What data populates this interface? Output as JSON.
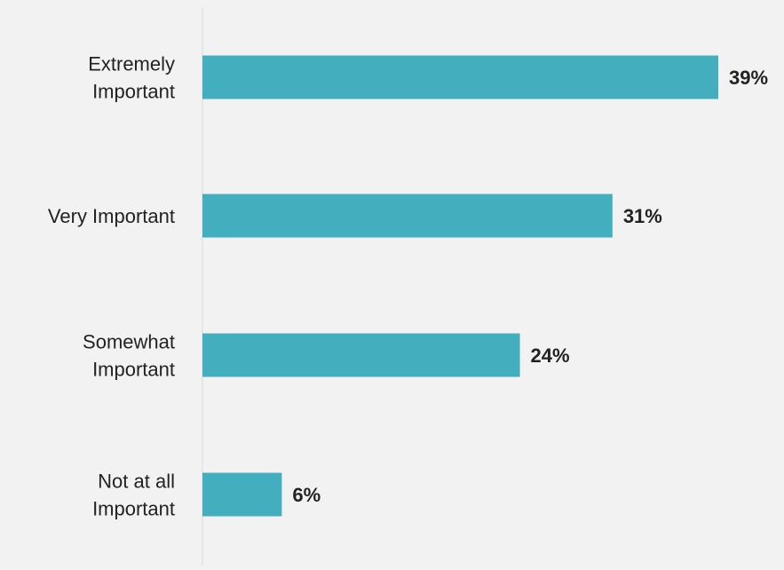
{
  "chart_data": {
    "type": "bar",
    "orientation": "horizontal",
    "categories": [
      [
        "Extremely",
        "Important"
      ],
      [
        "Very Important"
      ],
      [
        "Somewhat",
        "Important"
      ],
      [
        "Not at all",
        "Important"
      ]
    ],
    "values": [
      39,
      31,
      24,
      6
    ],
    "value_labels": [
      "39%",
      "31%",
      "24%",
      "6%"
    ],
    "xlim": [
      0,
      40
    ],
    "title": "",
    "xlabel": "",
    "ylabel": "",
    "grid": false,
    "legend": "none",
    "bar_color": "#42aebe",
    "axis_color": "#d9d9d9"
  }
}
